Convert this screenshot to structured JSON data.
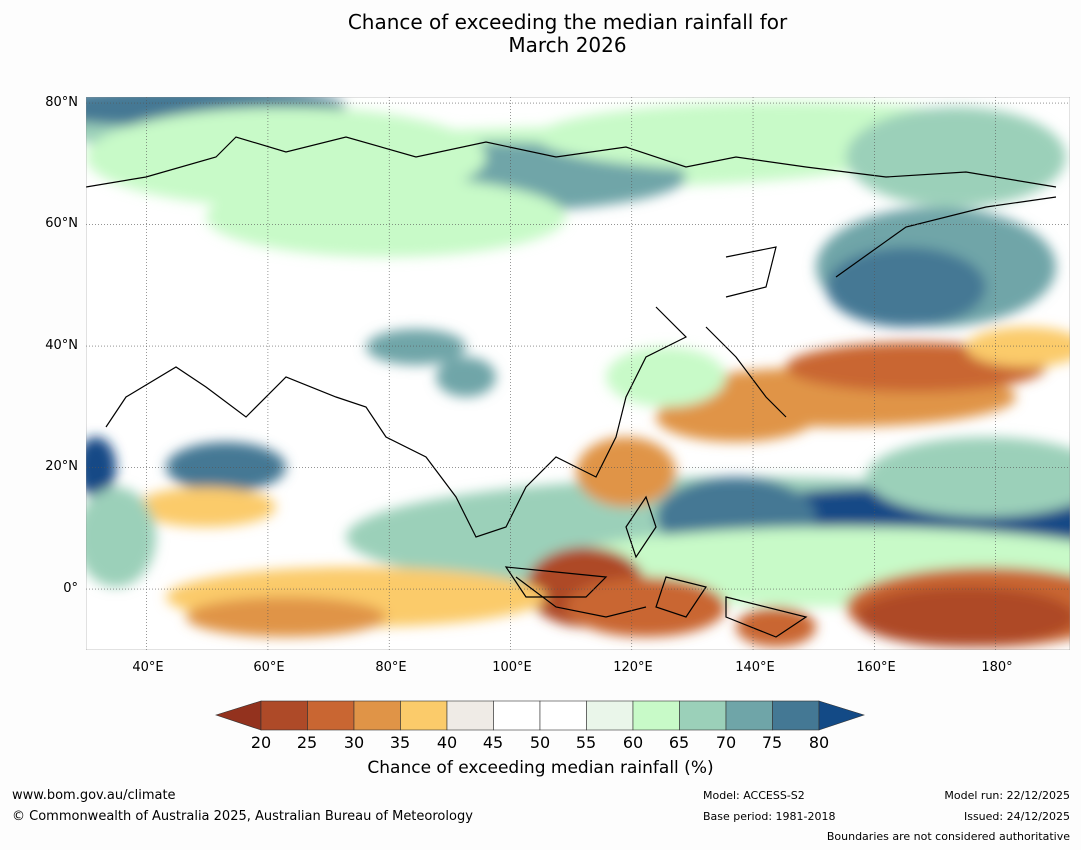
{
  "title_line1": "Chance of exceeding the median rainfall for",
  "title_line2": "March 2026",
  "map": {
    "lat_labels": [
      "80°N",
      "60°N",
      "40°N",
      "20°N",
      "0°"
    ],
    "lon_labels": [
      "40°E",
      "60°E",
      "80°E",
      "100°E",
      "120°E",
      "140°E",
      "160°E",
      "180°"
    ]
  },
  "colorbar": {
    "label": "Chance of exceeding median rainfall (%)",
    "ticks": [
      "20",
      "25",
      "30",
      "35",
      "40",
      "45",
      "50",
      "55",
      "60",
      "65",
      "70",
      "75",
      "80"
    ],
    "colors": [
      "#93321e",
      "#ae4a28",
      "#c96632",
      "#e09447",
      "#fbcb6a",
      "#efebe6",
      "#ffffff",
      "#ffffff",
      "#eaf6ea",
      "#c8fac8",
      "#9bd0b9",
      "#6fa5a8",
      "#447894",
      "#134a86"
    ]
  },
  "footer": {
    "url": "www.bom.gov.au/climate",
    "copyright": "© Commonwealth of Australia 2025, Australian Bureau of Meteorology",
    "model": "Model: ACCESS-S2",
    "base_period": "Base period: 1981-2018",
    "model_run": "Model run: 22/12/2025",
    "issued": "Issued: 24/12/2025",
    "disclaimer": "Boundaries are not considered authoritative"
  }
}
